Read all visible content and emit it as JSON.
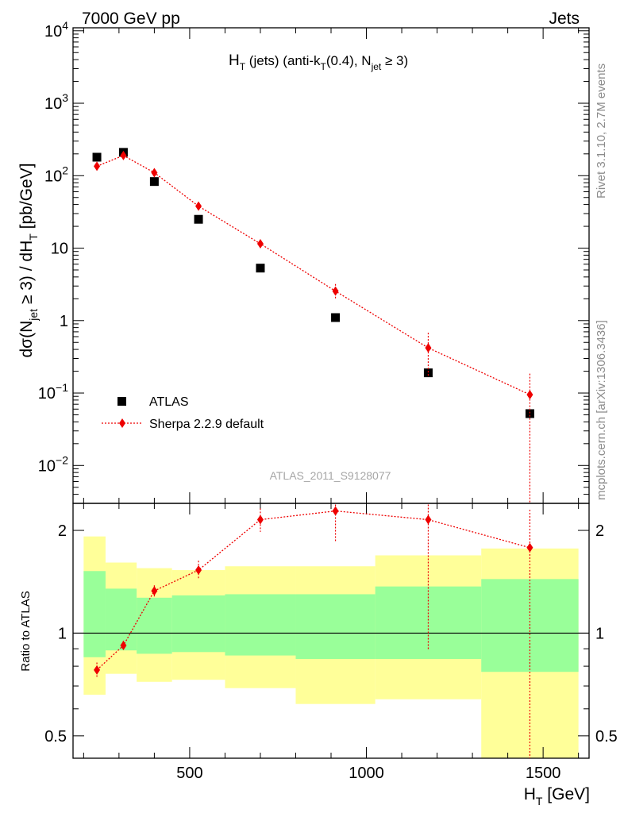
{
  "header": {
    "left": "7000 GeV pp",
    "right": "Jets"
  },
  "side_labels": {
    "rivet": "Rivet 3.1.10,  2.7M events",
    "mcplots": "mcplots.cern.ch [arXiv:1306.3436]"
  },
  "chart_data": [
    {
      "type": "scatter",
      "panel": "main",
      "title": {
        "main": "H",
        "main_sub": "T",
        "rest": " (jets) (anti-k",
        "rest_sub": "T",
        "rest2": "(0.4), N",
        "rest2_sub": "jet",
        "rest3": " ≥ 3)"
      },
      "ylabel": {
        "a": "dσ(N",
        "a_sub": "jet",
        "b": " ≥ 3) / dH",
        "b_sub": "T",
        "c": " [pb/GeV]"
      },
      "yscale": "log",
      "ylim": [
        0.003,
        11000
      ],
      "xlim": [
        170,
        1630
      ],
      "yticks": [
        {
          "v": 10000,
          "base": "10",
          "exp": "4"
        },
        {
          "v": 1000,
          "base": "10",
          "exp": "3"
        },
        {
          "v": 100,
          "base": "10",
          "exp": "2"
        },
        {
          "v": 10,
          "base": "10",
          "exp": ""
        },
        {
          "v": 1,
          "base": "1",
          "exp": ""
        },
        {
          "v": 0.1,
          "base": "10",
          "exp": "−1"
        },
        {
          "v": 0.01,
          "base": "10",
          "exp": "−2"
        }
      ],
      "series": [
        {
          "name": "ATLAS",
          "color": "#000000",
          "marker": "square",
          "points": [
            {
              "x": 237.5,
              "y": 180
            },
            {
              "x": 312.5,
              "y": 210
            },
            {
              "x": 400,
              "y": 83
            },
            {
              "x": 525,
              "y": 25
            },
            {
              "x": 700,
              "y": 5.3
            },
            {
              "x": 912.5,
              "y": 1.1
            },
            {
              "x": 1175,
              "y": 0.19
            },
            {
              "x": 1462.5,
              "y": 0.052
            }
          ]
        },
        {
          "name": "Sherpa 2.2.9 default",
          "color": "#ee0000",
          "marker": "diamond",
          "line": "dotted",
          "points": [
            {
              "x": 237.5,
              "y": 135,
              "lo": 122,
              "hi": 148
            },
            {
              "x": 312.5,
              "y": 190,
              "lo": 178,
              "hi": 202
            },
            {
              "x": 400,
              "y": 110,
              "lo": 102,
              "hi": 118
            },
            {
              "x": 525,
              "y": 38,
              "lo": 35,
              "hi": 42
            },
            {
              "x": 700,
              "y": 11.5,
              "lo": 10.3,
              "hi": 12.8
            },
            {
              "x": 912.5,
              "y": 2.55,
              "lo": 2.0,
              "hi": 3.2
            },
            {
              "x": 1175,
              "y": 0.42,
              "lo": 0.17,
              "hi": 0.68
            },
            {
              "x": 1462.5,
              "y": 0.095,
              "lo": 0.003,
              "hi": 0.185
            }
          ]
        }
      ],
      "watermark": "ATLAS_2011_S9128077"
    },
    {
      "type": "line",
      "panel": "ratio",
      "ylabel": "Ratio to ATLAS",
      "xlabel": "H",
      "xlabel_sub": "T",
      "xlabel_rest": " [GeV]",
      "yscale": "log",
      "ylim": [
        0.43,
        2.4
      ],
      "yticks": [
        {
          "v": 0.5,
          "label": "0.5"
        },
        {
          "v": 1,
          "label": "1"
        },
        {
          "v": 2,
          "label": "2"
        }
      ],
      "xticks": [
        {
          "v": 500,
          "label": "500"
        },
        {
          "v": 1000,
          "label": "1000"
        },
        {
          "v": 1500,
          "label": "1500"
        }
      ],
      "bins": [
        {
          "lo": 200,
          "hi": 262,
          "stat_lo": 0.85,
          "stat_hi": 1.52,
          "tot_lo": 0.66,
          "tot_hi": 1.92
        },
        {
          "lo": 262,
          "hi": 350,
          "stat_lo": 0.89,
          "stat_hi": 1.35,
          "tot_lo": 0.76,
          "tot_hi": 1.61
        },
        {
          "lo": 350,
          "hi": 450,
          "stat_lo": 0.87,
          "stat_hi": 1.27,
          "tot_lo": 0.72,
          "tot_hi": 1.55
        },
        {
          "lo": 450,
          "hi": 600,
          "stat_lo": 0.88,
          "stat_hi": 1.29,
          "tot_lo": 0.73,
          "tot_hi": 1.53
        },
        {
          "lo": 600,
          "hi": 800,
          "stat_lo": 0.86,
          "stat_hi": 1.3,
          "tot_lo": 0.69,
          "tot_hi": 1.57
        },
        {
          "lo": 800,
          "hi": 1025,
          "stat_lo": 0.84,
          "stat_hi": 1.3,
          "tot_lo": 0.62,
          "tot_hi": 1.57
        },
        {
          "lo": 1025,
          "hi": 1325,
          "stat_lo": 0.84,
          "stat_hi": 1.37,
          "tot_lo": 0.64,
          "tot_hi": 1.69
        },
        {
          "lo": 1325,
          "hi": 1600,
          "stat_lo": 0.77,
          "stat_hi": 1.44,
          "tot_lo": 0.43,
          "tot_hi": 1.77
        }
      ],
      "ratio_series": {
        "name": "Sherpa 2.2.9 default",
        "color": "#ee0000",
        "points": [
          {
            "x": 237.5,
            "y": 0.78,
            "lo": 0.74,
            "hi": 0.82
          },
          {
            "x": 312.5,
            "y": 0.92,
            "lo": 0.9,
            "hi": 0.95
          },
          {
            "x": 400,
            "y": 1.33,
            "lo": 1.28,
            "hi": 1.38
          },
          {
            "x": 525,
            "y": 1.53,
            "lo": 1.44,
            "hi": 1.63
          },
          {
            "x": 700,
            "y": 2.15,
            "lo": 1.98,
            "hi": 2.32
          },
          {
            "x": 912.5,
            "y": 2.28,
            "lo": 1.86,
            "hi": 2.38
          },
          {
            "x": 1175,
            "y": 2.15,
            "lo": 0.89,
            "hi": 2.38
          },
          {
            "x": 1462.5,
            "y": 1.78,
            "lo": 0.43,
            "hi": 2.3
          }
        ]
      },
      "reference_line": 1
    }
  ],
  "legend": {
    "items": [
      {
        "label": "ATLAS",
        "marker": "square",
        "color": "#000000"
      },
      {
        "label": "Sherpa 2.2.9 default",
        "marker": "diamond",
        "color": "#ee0000"
      }
    ]
  }
}
